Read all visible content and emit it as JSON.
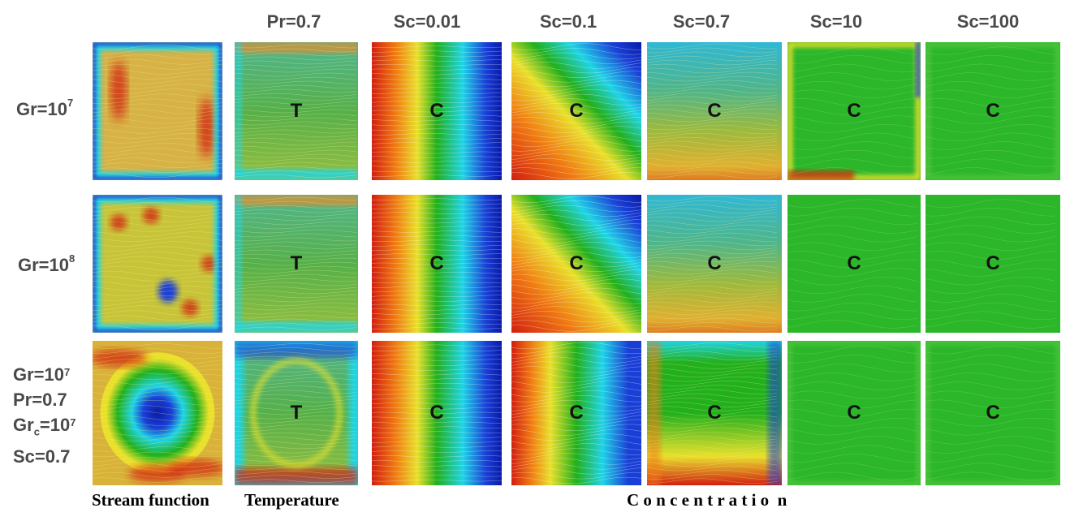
{
  "columns": {
    "c1": "Pr=0.7",
    "c2": "Sc=0.01",
    "c3": "Sc=0.1",
    "c4": "Sc=0.7",
    "c5": "Sc=10",
    "c6": "Sc=100"
  },
  "rows": {
    "r1": {
      "base": "Gr=10",
      "exp": "7"
    },
    "r2": {
      "base": "Gr=10",
      "exp": "8"
    },
    "r3": {
      "l1_base": "Gr=10",
      "l1_exp": "7",
      "l2": "Pr=0.7",
      "l3_base": "Gr",
      "l3_sub": "c",
      "l3_mid": "=10",
      "l3_exp": "7",
      "l4": "Sc=0.7"
    }
  },
  "panel_labels": {
    "temperature": "T",
    "concentration": "C"
  },
  "bottom_labels": {
    "stream": "Stream function",
    "temperature": "Temperature",
    "concentration": "C o n c e n t r a t i o  n"
  },
  "colors": {
    "red": "#d21f10",
    "orange": "#f07a12",
    "yellow": "#e9e02b",
    "green": "#22b01c",
    "cyan": "#1fd4e6",
    "blue": "#1a3fd6",
    "dark_blue": "#0a1aa8"
  }
}
